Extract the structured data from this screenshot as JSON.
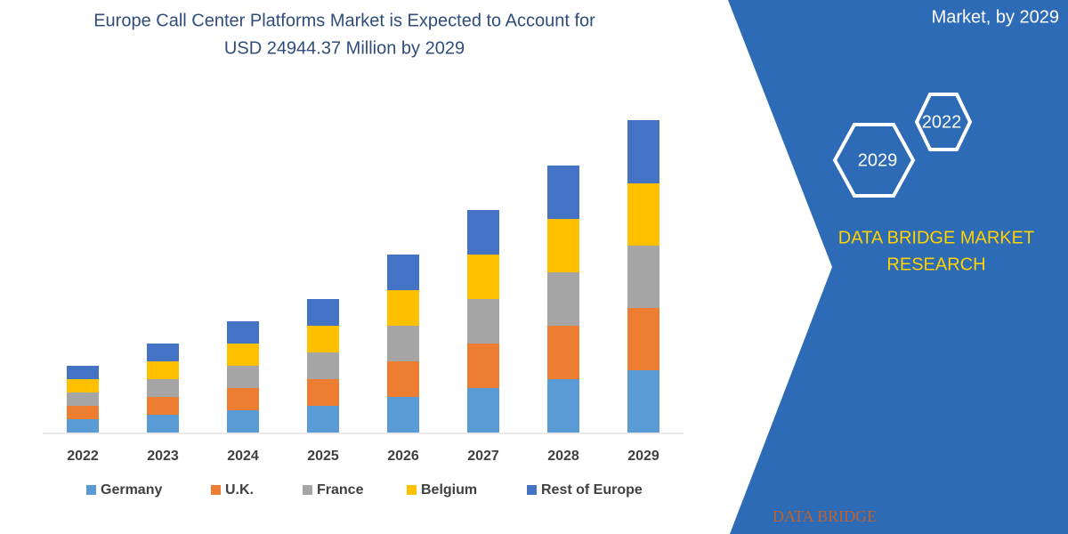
{
  "chart_data": {
    "type": "stacked_bar",
    "title": [
      "Europe Call Center Platforms Market is Expected to Account for",
      "USD 24944.37 Million by 2029"
    ],
    "categories": [
      "2022",
      "2023",
      "2024",
      "2025",
      "2026",
      "2027",
      "2028",
      "2029"
    ],
    "series": [
      {
        "name": "Germany",
        "color": "#5b9bd5",
        "values": [
          15,
          20,
          25,
          30,
          40,
          50,
          60,
          70
        ]
      },
      {
        "name": "U.K.",
        "color": "#ed7d31",
        "values": [
          15,
          20,
          25,
          30,
          40,
          50,
          60,
          70
        ]
      },
      {
        "name": "France",
        "color": "#a5a5a5",
        "values": [
          15,
          20,
          25,
          30,
          40,
          50,
          60,
          70
        ]
      },
      {
        "name": "Belgium",
        "color": "#ffc000",
        "values": [
          15,
          20,
          25,
          30,
          40,
          50,
          60,
          70
        ]
      },
      {
        "name": "Rest of Europe",
        "color": "#4472c4",
        "values": [
          15,
          20,
          25,
          30,
          40,
          50,
          60,
          71
        ]
      }
    ],
    "ylim": [
      0,
      351
    ]
  },
  "panel": {
    "heading": "Market, by 2029",
    "hexagons": [
      "2022",
      "2029"
    ],
    "brand": [
      "DATA BRIDGE MARKET",
      "RESEARCH"
    ],
    "logo": "DATA BRIDGE"
  }
}
